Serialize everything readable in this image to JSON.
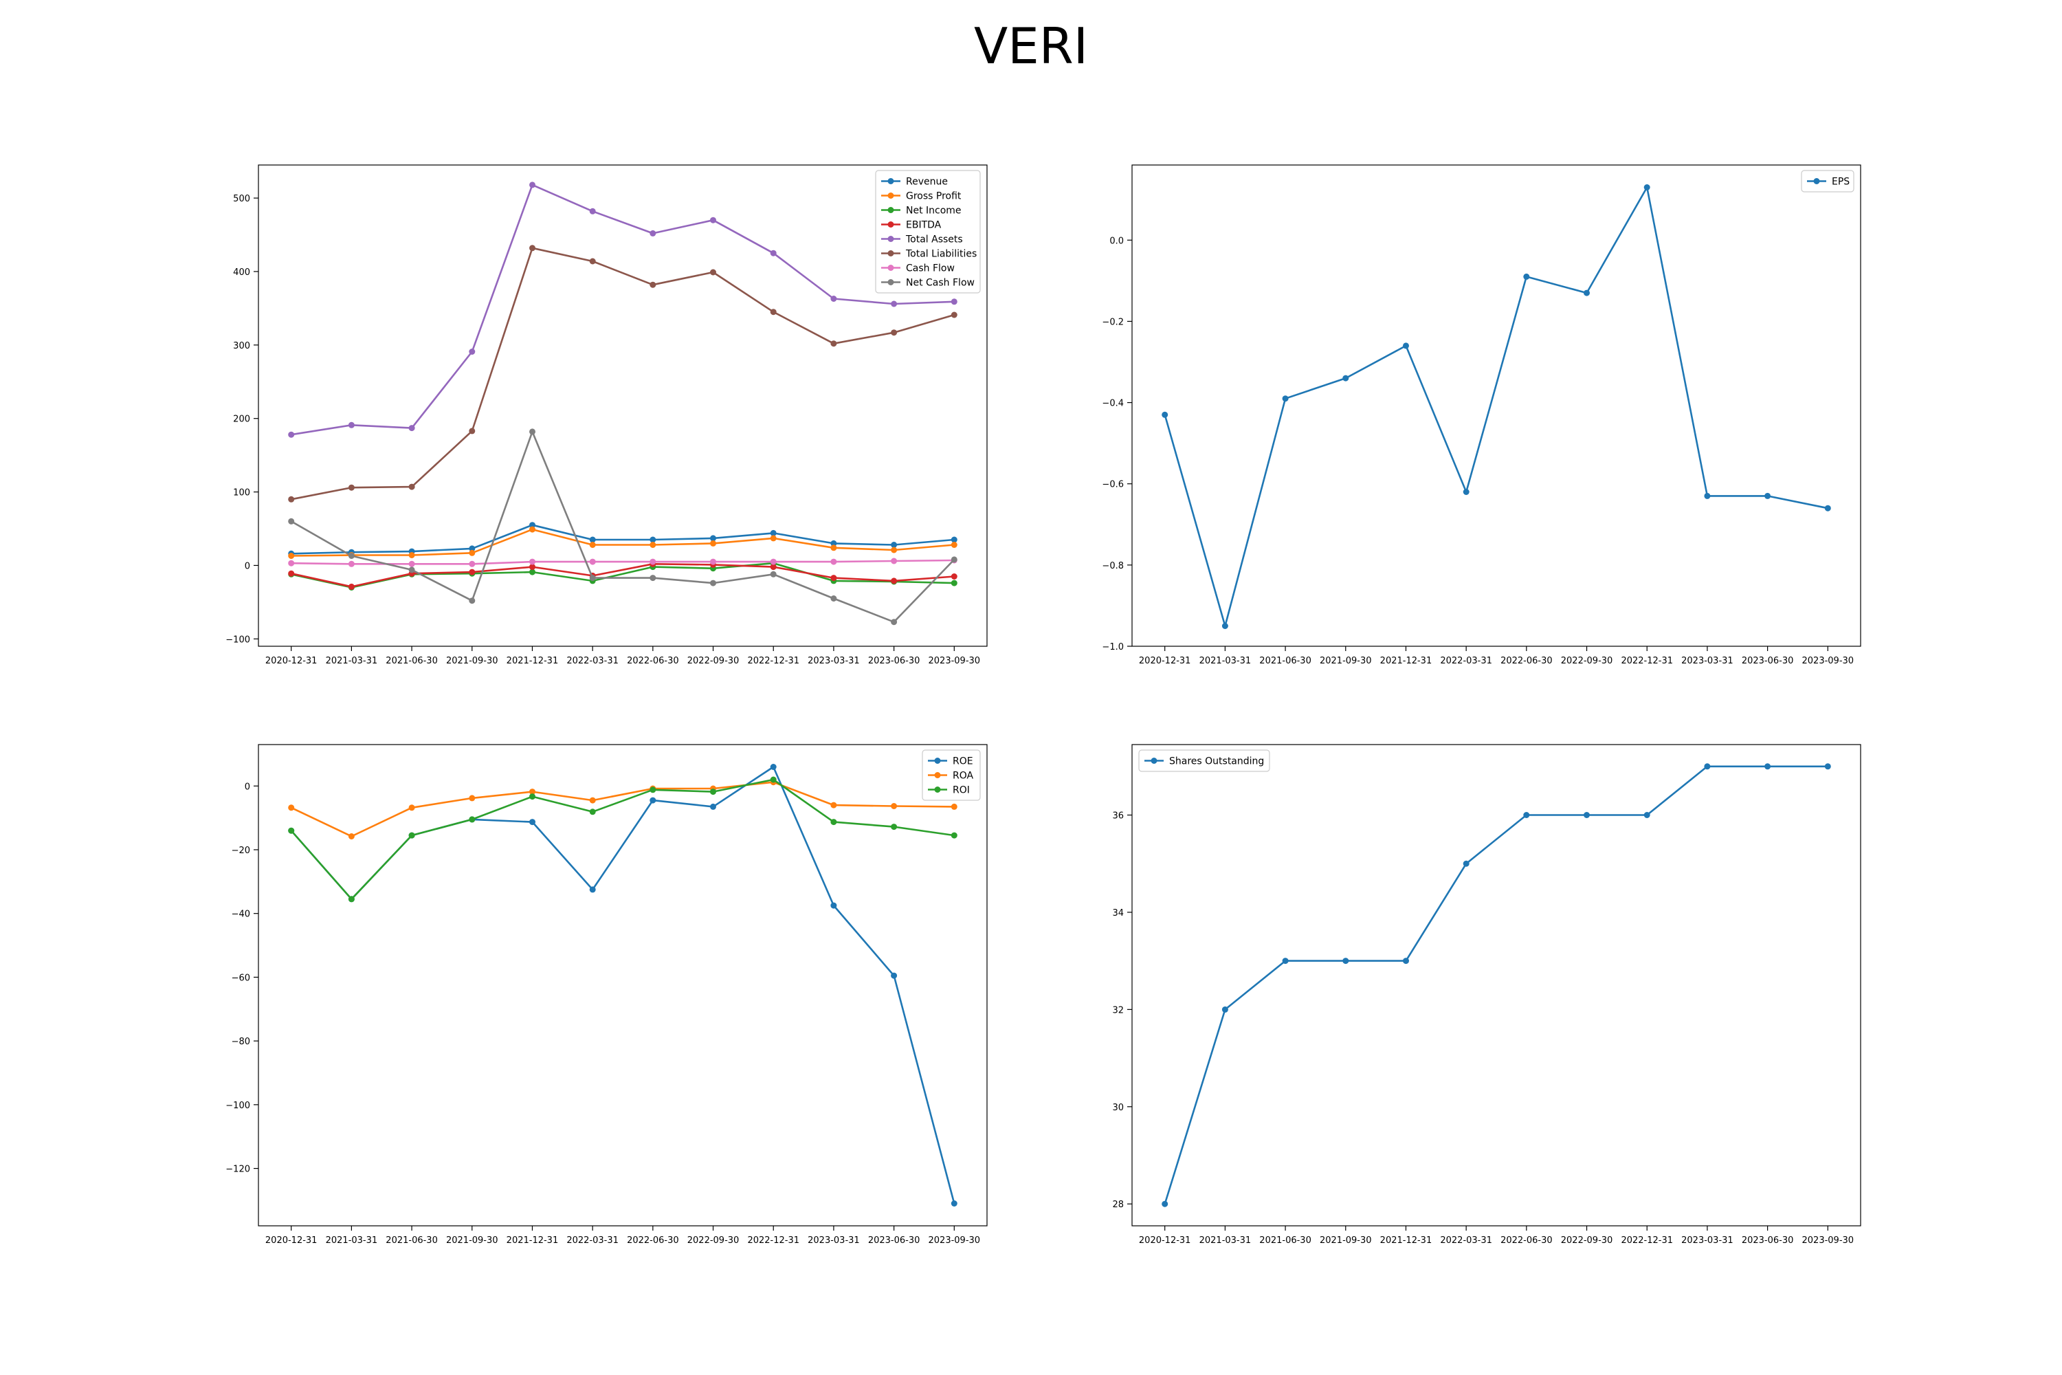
{
  "title": "VERI",
  "chart_data": [
    {
      "type": "line",
      "categories": [
        "2020-12-31",
        "2021-03-31",
        "2021-06-30",
        "2021-09-30",
        "2021-12-31",
        "2022-03-31",
        "2022-06-30",
        "2022-09-30",
        "2022-12-31",
        "2023-03-31",
        "2023-06-30",
        "2023-09-30"
      ],
      "ylim": [
        -110,
        545
      ],
      "yticks": [
        -100,
        0,
        100,
        200,
        300,
        400,
        500
      ],
      "ytick_labels": [
        "−100",
        "0",
        "100",
        "200",
        "300",
        "400",
        "500"
      ],
      "legend_position": "upper right",
      "series": [
        {
          "name": "Revenue",
          "color": "#1f77b4",
          "values": [
            16,
            18,
            19,
            23,
            55,
            35,
            35,
            37,
            44,
            30,
            28,
            35
          ]
        },
        {
          "name": "Gross Profit",
          "color": "#ff7f0e",
          "values": [
            13,
            14,
            14,
            17,
            49,
            28,
            28,
            30,
            37,
            24,
            21,
            28
          ]
        },
        {
          "name": "Net Income",
          "color": "#2ca02c",
          "values": [
            -12,
            -30,
            -12,
            -11,
            -9,
            -21,
            -2,
            -4,
            3,
            -21,
            -22,
            -24
          ]
        },
        {
          "name": "EBITDA",
          "color": "#d62728",
          "values": [
            -11,
            -29,
            -11,
            -9,
            -2,
            -14,
            2,
            1,
            -2,
            -17,
            -21,
            -15
          ]
        },
        {
          "name": "Total Assets",
          "color": "#9467bd",
          "values": [
            178,
            191,
            187,
            291,
            518,
            482,
            452,
            470,
            425,
            363,
            356,
            359
          ]
        },
        {
          "name": "Total Liabilities",
          "color": "#8c564b",
          "values": [
            90,
            106,
            107,
            183,
            432,
            414,
            382,
            399,
            345,
            302,
            317,
            341
          ]
        },
        {
          "name": "Cash Flow",
          "color": "#e377c2",
          "values": [
            3,
            2,
            2,
            2,
            5,
            5,
            5,
            5,
            5,
            5,
            6,
            7
          ]
        },
        {
          "name": "Net Cash Flow",
          "color": "#7f7f7f",
          "values": [
            60,
            13,
            -6,
            -48,
            182,
            -17,
            -17,
            -24,
            -12,
            -45,
            -77,
            8
          ]
        }
      ]
    },
    {
      "type": "line",
      "categories": [
        "2020-12-31",
        "2021-03-31",
        "2021-06-30",
        "2021-09-30",
        "2021-12-31",
        "2022-03-31",
        "2022-06-30",
        "2022-09-30",
        "2022-12-31",
        "2023-03-31",
        "2023-06-30",
        "2023-09-30"
      ],
      "ylim": [
        -1.0,
        0.185
      ],
      "yticks": [
        -1.0,
        -0.8,
        -0.6,
        -0.4,
        -0.2,
        0.0
      ],
      "ytick_labels": [
        "−1.0",
        "−0.8",
        "−0.6",
        "−0.4",
        "−0.2",
        "0.0"
      ],
      "legend_position": "upper right",
      "series": [
        {
          "name": "EPS",
          "color": "#1f77b4",
          "values": [
            -0.43,
            -0.95,
            -0.39,
            -0.34,
            -0.26,
            -0.62,
            -0.09,
            -0.13,
            0.13,
            -0.63,
            -0.63,
            -0.66
          ]
        }
      ]
    },
    {
      "type": "line",
      "categories": [
        "2020-12-31",
        "2021-03-31",
        "2021-06-30",
        "2021-09-30",
        "2021-12-31",
        "2022-03-31",
        "2022-06-30",
        "2022-09-30",
        "2022-12-31",
        "2023-03-31",
        "2023-06-30",
        "2023-09-30"
      ],
      "ylim": [
        -138,
        13
      ],
      "yticks": [
        -120,
        -100,
        -80,
        -60,
        -40,
        -20,
        0
      ],
      "ytick_labels": [
        "−120",
        "−100",
        "−80",
        "−60",
        "−40",
        "−20",
        "0"
      ],
      "legend_position": "upper right",
      "series": [
        {
          "name": "ROE",
          "color": "#1f77b4",
          "values": [
            -14,
            -35.5,
            -15.5,
            -10.5,
            -11.3,
            -32.5,
            -4.5,
            -6.5,
            6,
            -37.5,
            -59.5,
            -131
          ]
        },
        {
          "name": "ROA",
          "color": "#ff7f0e",
          "values": [
            -6.8,
            -15.8,
            -6.8,
            -3.8,
            -1.8,
            -4.5,
            -0.8,
            -0.8,
            1.2,
            -6,
            -6.3,
            -6.5
          ]
        },
        {
          "name": "ROI",
          "color": "#2ca02c",
          "values": [
            -14,
            -35.5,
            -15.5,
            -10.5,
            -3.3,
            -8.1,
            -1.2,
            -1.8,
            2,
            -11.3,
            -12.8,
            -15.5
          ]
        }
      ]
    },
    {
      "type": "line",
      "categories": [
        "2020-12-31",
        "2021-03-31",
        "2021-06-30",
        "2021-09-30",
        "2021-12-31",
        "2022-03-31",
        "2022-06-30",
        "2022-09-30",
        "2022-12-31",
        "2023-03-31",
        "2023-06-30",
        "2023-09-30"
      ],
      "ylim": [
        27.55,
        37.45
      ],
      "yticks": [
        28,
        30,
        32,
        34,
        36
      ],
      "ytick_labels": [
        "28",
        "30",
        "32",
        "34",
        "36"
      ],
      "legend_position": "upper left",
      "series": [
        {
          "name": "Shares Outstanding",
          "color": "#1f77b4",
          "values": [
            28,
            32,
            33,
            33,
            33,
            35,
            36,
            36,
            36,
            37,
            37,
            37
          ]
        }
      ]
    }
  ]
}
